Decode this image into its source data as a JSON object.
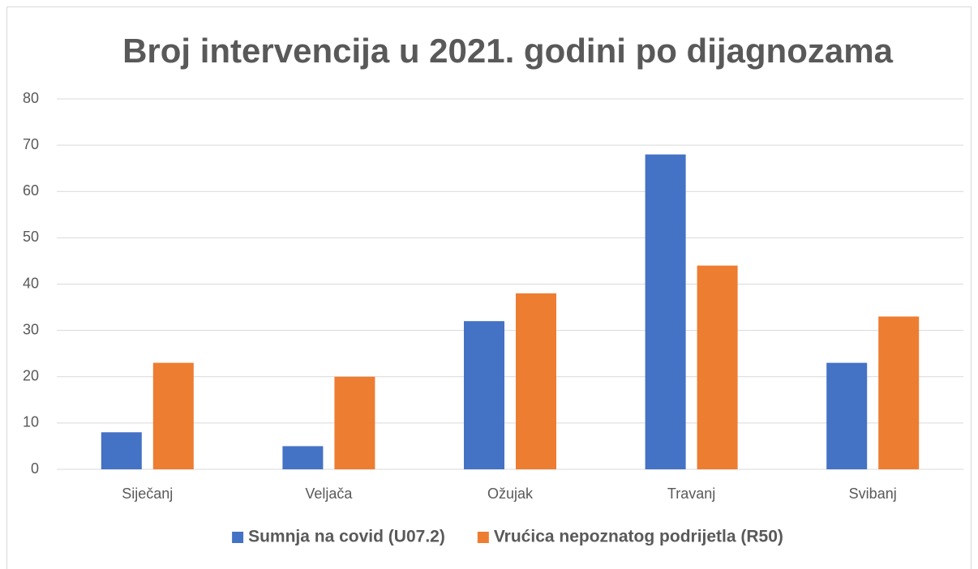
{
  "chart_data": {
    "type": "bar",
    "title": "Broj intervencija u 2021. godini po dijagnozama",
    "categories": [
      "Siječanj",
      "Veljača",
      "Ožujak",
      "Travanj",
      "Svibanj"
    ],
    "series": [
      {
        "name": "Sumnja na covid (U07.2)",
        "color": "#4472c4",
        "values": [
          8,
          5,
          32,
          68,
          23
        ]
      },
      {
        "name": "Vrućica nepoznatog podrijetla (R50)",
        "color": "#ed7d31",
        "values": [
          23,
          20,
          38,
          44,
          33
        ]
      }
    ],
    "ylim": [
      0,
      80
    ],
    "yticks": [
      0,
      10,
      20,
      30,
      40,
      50,
      60,
      70,
      80
    ],
    "grid": true,
    "legend": "bottom"
  }
}
